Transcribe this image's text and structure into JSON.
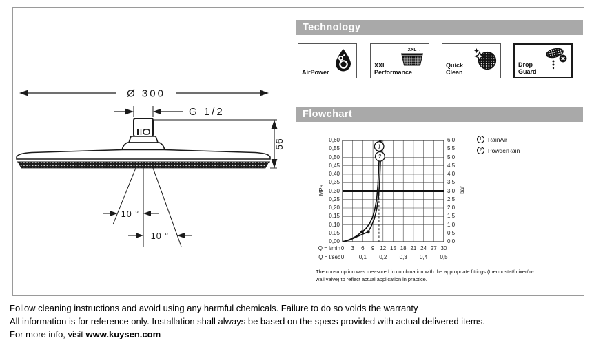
{
  "drawing": {
    "diameter": "Ø 300",
    "thread": "G 1/2",
    "height": "56",
    "angle_left": "10 °",
    "angle_right": "10 °"
  },
  "technology": {
    "header": "Technology",
    "items": [
      {
        "line1": "AirPower",
        "line2": "",
        "icon": "airpower-drop-icon"
      },
      {
        "line1": "XXL",
        "line2": "Performance",
        "icon": "xxl-performance-icon",
        "badge": "←XXL→"
      },
      {
        "line1": "Quick",
        "line2": "Clean",
        "icon": "quick-clean-icon"
      },
      {
        "line1": "Drop",
        "line2": "Guard",
        "icon": "drop-guard-icon"
      }
    ]
  },
  "flowchart": {
    "header": "Flowchart",
    "legend": [
      {
        "num": "1",
        "label": "RainAir"
      },
      {
        "num": "2",
        "label": "PowderRain"
      }
    ],
    "footnote": [
      "The consumption was measured in combination with the appropriate fittings (thermostat/mixer/in-",
      "wall valve) to reflect actual application in practice."
    ],
    "chart_data": {
      "type": "line",
      "ylabel_left": "MPa",
      "ylabel_right": "bar",
      "xlim_lmin": [
        0,
        30
      ],
      "ylim_mpa": [
        0,
        0.6
      ],
      "ylim_bar": [
        0,
        6.0
      ],
      "grid": true,
      "yticks_left": [
        "0,60",
        "0,55",
        "0,50",
        "0,45",
        "0,40",
        "0,35",
        "0,30",
        "0,25",
        "0,20",
        "0,15",
        "0,10",
        "0,05",
        "0,00"
      ],
      "yticks_right": [
        "6,0",
        "5,5",
        "5,0",
        "4,5",
        "4,0",
        "3,5",
        "3,0",
        "2,5",
        "2,0",
        "1,5",
        "1,0",
        "0,5",
        "0,0"
      ],
      "x_rows": [
        {
          "prefix": "Q = l/min",
          "ticks": [
            {
              "v": 0,
              "t": "0"
            },
            {
              "v": 3,
              "t": "3"
            },
            {
              "v": 6,
              "t": "6"
            },
            {
              "v": 9,
              "t": "9"
            },
            {
              "v": 12,
              "t": "12"
            },
            {
              "v": 15,
              "t": "15"
            },
            {
              "v": 18,
              "t": "18"
            },
            {
              "v": 21,
              "t": "21"
            },
            {
              "v": 24,
              "t": "24"
            },
            {
              "v": 27,
              "t": "27"
            },
            {
              "v": 30,
              "t": "30"
            }
          ]
        },
        {
          "prefix": "Q = l/sec",
          "ticks": [
            {
              "v": 0,
              "t": "0"
            },
            {
              "v": 6,
              "t": "0,1"
            },
            {
              "v": 12,
              "t": "0,2"
            },
            {
              "v": 18,
              "t": "0,3"
            },
            {
              "v": 24,
              "t": "0,4"
            },
            {
              "v": 30,
              "t": "0,5"
            }
          ]
        }
      ],
      "reference_pressure_mpa": 0.3,
      "dashed_guide_lmin": 10.8,
      "series": [
        {
          "name": "RainAir",
          "marker": "1",
          "marker_at": [
            10.85,
            0.565
          ],
          "dot": [
            5.8,
            0.058
          ],
          "points": [
            [
              0,
              0
            ],
            [
              2,
              0.012
            ],
            [
              4,
              0.032
            ],
            [
              5.8,
              0.058
            ],
            [
              7,
              0.08
            ],
            [
              8,
              0.107
            ],
            [
              8.8,
              0.14
            ],
            [
              9.5,
              0.185
            ],
            [
              10.1,
              0.25
            ],
            [
              10.5,
              0.34
            ],
            [
              10.8,
              0.47
            ],
            [
              10.95,
              0.6
            ]
          ]
        },
        {
          "name": "PowderRain",
          "marker": "2",
          "marker_at": [
            11.1,
            0.505
          ],
          "dot": [
            7.6,
            0.058
          ],
          "points": [
            [
              0,
              0
            ],
            [
              2,
              0.01
            ],
            [
              4,
              0.027
            ],
            [
              6,
              0.045
            ],
            [
              7.6,
              0.058
            ],
            [
              8.6,
              0.095
            ],
            [
              9.4,
              0.135
            ],
            [
              10.1,
              0.19
            ],
            [
              10.7,
              0.27
            ],
            [
              11.0,
              0.36
            ],
            [
              11.25,
              0.48
            ],
            [
              11.4,
              0.6
            ]
          ]
        }
      ]
    }
  },
  "footer": {
    "line1": "Follow cleaning instructions and avoid using any harmful chemicals. Failure to do so voids the warranty",
    "line2": "All information is for reference only. Installation shall always be based on the specs provided with actual delivered items.",
    "line3_prefix": "For more info, visit ",
    "line3_link": "www.kuysen.com"
  },
  "colors": {
    "header_bar": "#a9a9a9",
    "ink": "#1a1a1a",
    "frame_border": "#9a9a9a"
  }
}
